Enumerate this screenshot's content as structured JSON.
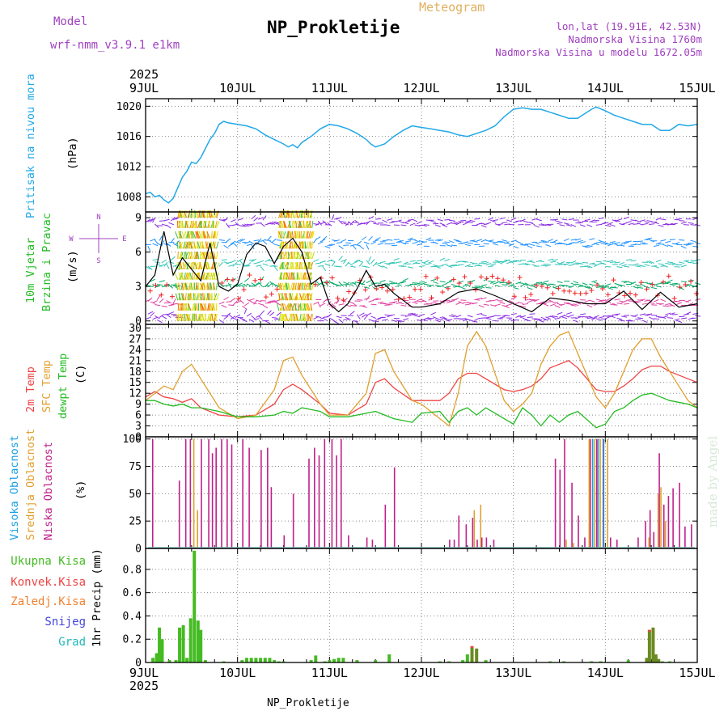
{
  "header": {
    "model_label": "Model",
    "model_name": "wrf-nmm_v3.9.1 e1km",
    "title": "NP_Prokletije",
    "meteogram": "Meteogram",
    "lonlat": "lon,lat (19.91E, 42.53N)",
    "altitude": "Nadmorska Visina 1760m",
    "model_altitude": "Nadmorska Visina u modelu 1672.05m"
  },
  "time_axis": {
    "year": "2025",
    "labels": [
      "9JUL",
      "10JUL",
      "11JUL",
      "12JUL",
      "13JUL",
      "14JUL",
      "15JUL"
    ],
    "start_day": 9,
    "end_day": 15
  },
  "footer": {
    "station": "NP_Prokletije",
    "watermark": "made by Angel"
  },
  "colors": {
    "pressure": "#22a8e8",
    "t2m": "#ee4444",
    "sfc": "#e0a030",
    "dewp": "#22bb22",
    "cloud_high": "#1aa0e0",
    "cloud_mid": "#e0a030",
    "cloud_low": "#c0208a",
    "precip_total": "#44bb22",
    "precip_conv": "#ee4444",
    "precip_zaledj": "#f08030",
    "precip_snow": "#4444dd",
    "precip_grad": "#22b8b8",
    "axis": "#000000"
  },
  "chart_data": [
    {
      "type": "line",
      "panel": "pressure",
      "ylabel_left": "Pritisak na nivou mora",
      "ylabel_unit": "(hPa)",
      "ylim": [
        1006,
        1021
      ],
      "yticks": [
        1008,
        1012,
        1016,
        1020
      ],
      "x": [
        9.0,
        9.05,
        9.1,
        9.15,
        9.2,
        9.25,
        9.3,
        9.35,
        9.4,
        9.45,
        9.5,
        9.55,
        9.6,
        9.65,
        9.7,
        9.75,
        9.8,
        9.85,
        9.9,
        10.0,
        10.1,
        10.2,
        10.3,
        10.4,
        10.5,
        10.55,
        10.6,
        10.65,
        10.7,
        10.8,
        10.9,
        11.0,
        11.1,
        11.2,
        11.3,
        11.4,
        11.45,
        11.5,
        11.6,
        11.7,
        11.8,
        11.9,
        12.0,
        12.1,
        12.2,
        12.3,
        12.4,
        12.5,
        12.6,
        12.7,
        12.8,
        12.9,
        13.0,
        13.1,
        13.2,
        13.3,
        13.4,
        13.5,
        13.6,
        13.7,
        13.8,
        13.85,
        13.9,
        14.0,
        14.1,
        14.2,
        14.3,
        14.4,
        14.5,
        14.6,
        14.7,
        14.8,
        14.9,
        15.0
      ],
      "series": [
        {
          "name": "",
          "values": [
            1008.4,
            1008.6,
            1008.0,
            1008.2,
            1007.6,
            1007.2,
            1007.8,
            1009.2,
            1010.6,
            1011.4,
            1012.6,
            1012.4,
            1013.2,
            1014.4,
            1015.6,
            1016.4,
            1017.6,
            1018.0,
            1017.8,
            1017.6,
            1017.4,
            1017.0,
            1016.2,
            1015.6,
            1015.0,
            1014.6,
            1014.9,
            1014.5,
            1015.2,
            1016.0,
            1017.0,
            1017.6,
            1017.4,
            1017.0,
            1016.4,
            1015.6,
            1015.0,
            1014.6,
            1015.0,
            1016.0,
            1016.8,
            1017.4,
            1017.2,
            1017.0,
            1016.8,
            1016.6,
            1016.2,
            1016.0,
            1016.4,
            1016.8,
            1017.4,
            1018.6,
            1019.6,
            1019.8,
            1019.6,
            1019.6,
            1019.2,
            1018.8,
            1018.4,
            1018.4,
            1019.2,
            1019.6,
            1019.9,
            1019.4,
            1018.8,
            1018.4,
            1018.0,
            1017.6,
            1017.6,
            1016.8,
            1016.8,
            1017.6,
            1017.4,
            1017.6
          ]
        }
      ]
    },
    {
      "type": "line",
      "panel": "wind",
      "ylabel_left": [
        "10m Vjetar",
        "Brzina i Pravac"
      ],
      "ylabel_unit": "(m/s)",
      "compass": [
        "N",
        "W",
        "E",
        "S"
      ],
      "ylim": [
        -0.3,
        9.5
      ],
      "yticks": [
        0,
        3,
        6,
        9
      ],
      "x": [
        9.0,
        9.1,
        9.2,
        9.3,
        9.4,
        9.5,
        9.6,
        9.7,
        9.8,
        9.9,
        10.0,
        10.1,
        10.2,
        10.3,
        10.4,
        10.5,
        10.6,
        10.7,
        10.8,
        10.9,
        11.0,
        11.1,
        11.2,
        11.3,
        11.4,
        11.5,
        11.6,
        11.7,
        11.8,
        11.9,
        12.0,
        12.2,
        12.4,
        12.6,
        12.8,
        13.0,
        13.2,
        13.4,
        13.6,
        13.8,
        14.0,
        14.2,
        14.4,
        14.6,
        14.8,
        15.0
      ],
      "series": [
        {
          "name": "",
          "values": [
            3.0,
            4.0,
            7.8,
            4.0,
            5.5,
            4.5,
            3.5,
            6.8,
            3.0,
            2.6,
            3.2,
            5.8,
            6.8,
            6.5,
            5.0,
            6.5,
            7.2,
            6.0,
            3.2,
            3.8,
            1.5,
            0.8,
            1.5,
            2.8,
            4.4,
            3.0,
            3.2,
            2.4,
            1.8,
            1.2,
            1.2,
            1.5,
            2.5,
            2.8,
            2.2,
            1.5,
            0.8,
            2.0,
            1.8,
            1.5,
            1.5,
            2.6,
            1.0,
            2.5,
            1.2,
            1.5
          ]
        }
      ]
    },
    {
      "type": "line",
      "panel": "temperature",
      "ylabel_left": [
        "2m Temp",
        "SFC Temp",
        "dewpt Temp"
      ],
      "ylabel_unit": "(C)",
      "ylim": [
        0,
        31
      ],
      "yticks": [
        0,
        3,
        6,
        9,
        12,
        15,
        18,
        21,
        24,
        27,
        30
      ],
      "x": [
        9.0,
        9.1,
        9.2,
        9.3,
        9.4,
        9.5,
        9.6,
        9.8,
        10.0,
        10.2,
        10.4,
        10.5,
        10.6,
        10.7,
        10.9,
        11.0,
        11.2,
        11.4,
        11.5,
        11.6,
        11.7,
        11.9,
        12.0,
        12.2,
        12.3,
        12.4,
        12.5,
        12.6,
        12.7,
        12.9,
        13.0,
        13.1,
        13.2,
        13.3,
        13.4,
        13.5,
        13.6,
        13.7,
        13.9,
        14.0,
        14.1,
        14.2,
        14.3,
        14.4,
        14.5,
        14.6,
        14.7,
        14.9,
        15.0
      ],
      "series": [
        {
          "name": "2m Temp",
          "values": [
            11,
            12.5,
            11,
            10.5,
            9.5,
            10.5,
            8,
            6,
            5.5,
            6,
            9,
            13,
            14.5,
            13,
            9,
            6.5,
            6,
            9,
            15,
            16,
            13.5,
            10,
            10,
            10,
            12,
            16,
            17.5,
            17.5,
            16,
            13,
            12.5,
            13,
            14,
            16,
            19,
            20,
            21,
            19,
            13,
            12.5,
            12.5,
            14,
            16,
            18.5,
            19.5,
            19.5,
            18,
            16,
            15
          ]
        },
        {
          "name": "SFC Temp",
          "values": [
            10,
            12,
            14,
            13,
            18,
            20,
            16,
            8,
            5,
            6,
            13,
            21,
            22,
            17,
            9,
            6,
            6,
            12,
            23,
            24,
            18,
            10,
            9,
            5,
            3,
            12,
            25,
            29,
            25,
            10,
            7,
            9,
            12,
            20,
            25,
            28,
            29,
            23,
            11,
            8,
            12,
            18,
            24,
            27,
            27,
            22,
            18,
            10,
            8
          ]
        },
        {
          "name": "dewpt Temp",
          "values": [
            10,
            10,
            9,
            8.5,
            9,
            8,
            8,
            7,
            5.5,
            5.5,
            6,
            7,
            6.5,
            8,
            7,
            5.5,
            5.5,
            6.5,
            7,
            6,
            5,
            4,
            6.5,
            7,
            4,
            7,
            8,
            6,
            8,
            5,
            3.5,
            8,
            6,
            3,
            6,
            4,
            6,
            7,
            2.5,
            3.5,
            7,
            8,
            10,
            11.5,
            12,
            11,
            10,
            9,
            8
          ]
        }
      ]
    },
    {
      "type": "bar",
      "panel": "clouds",
      "ylabel_left": [
        "Visoka Oblacnost",
        "Srednja Oblacnost",
        "Niska Oblacnost"
      ],
      "ylabel_unit": "(%)",
      "ylim": [
        0,
        102
      ],
      "yticks": [
        0,
        25,
        50,
        75,
        100
      ],
      "series": [
        {
          "name": "Niska Oblacnost",
          "x": [
            9.07,
            9.36,
            9.43,
            9.48,
            9.6,
            9.68,
            9.72,
            9.76,
            9.82,
            9.88,
            9.93,
            10.05,
            10.12,
            10.25,
            10.32,
            10.36,
            10.5,
            10.6,
            10.77,
            10.83,
            10.88,
            10.94,
            11.02,
            11.07,
            11.12,
            11.2,
            11.4,
            11.46,
            11.6,
            11.7,
            12.3,
            12.35,
            12.4,
            12.48,
            12.55,
            12.6,
            12.65,
            12.7,
            12.78,
            13.45,
            13.5,
            13.55,
            13.63,
            13.7,
            13.77,
            13.83,
            13.9,
            13.97,
            14.05,
            14.12,
            14.35,
            14.43,
            14.48,
            14.52,
            14.58,
            14.63,
            14.68,
            14.73,
            14.8,
            14.86,
            14.93
          ],
          "values": [
            100,
            62,
            100,
            100,
            100,
            100,
            87,
            92,
            100,
            100,
            95,
            100,
            92,
            90,
            92,
            56,
            12,
            50,
            82,
            92,
            85,
            100,
            100,
            85,
            100,
            12,
            10,
            8,
            40,
            74,
            8,
            8,
            30,
            22,
            28,
            8,
            10,
            10,
            8,
            82,
            72,
            100,
            60,
            30,
            10,
            100,
            100,
            100,
            10,
            8,
            10,
            25,
            35,
            15,
            87,
            40,
            48,
            55,
            60,
            20,
            22
          ]
        },
        {
          "name": "Srednja Oblacnost",
          "x": [
            9.5,
            9.54,
            12.55,
            12.62,
            13.55,
            13.63,
            13.8,
            13.86,
            13.92,
            14.0,
            14.45,
            14.55,
            14.58,
            14.63
          ],
          "values": [
            100,
            35,
            35,
            40,
            8,
            5,
            100,
            100,
            100,
            100,
            10,
            50,
            56,
            25
          ]
        },
        {
          "name": "Visoka Oblacnost",
          "x": [
            13.82,
            13.88,
            13.94
          ],
          "values": [
            100,
            100,
            100
          ]
        }
      ]
    },
    {
      "type": "bar",
      "panel": "precip",
      "ylabel_unit": "1hr Precip (mm)",
      "legend": [
        "Ukupna Kisa",
        "Konvek.Kisa",
        "Zaledj.Kisa",
        "Snijeg",
        "Grad"
      ],
      "ylim": [
        0,
        0.98
      ],
      "yticks": [
        0,
        0.2,
        0.4,
        0.6,
        0.8
      ],
      "series": [
        {
          "name": "Ukupna Kisa",
          "x": [
            9.08,
            9.12,
            9.15,
            9.18,
            9.26,
            9.33,
            9.37,
            9.41,
            9.45,
            9.49,
            9.53,
            9.57,
            9.6,
            9.65,
            9.85,
            10.05,
            10.1,
            10.15,
            10.2,
            10.25,
            10.3,
            10.35,
            10.4,
            10.45,
            10.5,
            10.8,
            10.85,
            10.95,
            11.0,
            11.05,
            11.1,
            11.15,
            11.3,
            11.5,
            11.65,
            12.2,
            12.3,
            12.45,
            12.5,
            12.55,
            12.6,
            12.7,
            13.4,
            13.55,
            13.85,
            13.95,
            14.25,
            14.45,
            14.48,
            14.52,
            14.55,
            14.58,
            14.62,
            14.7
          ],
          "values": [
            0.04,
            0.08,
            0.3,
            0.2,
            0.02,
            0.02,
            0.3,
            0.32,
            0.04,
            0.38,
            0.96,
            0.36,
            0.28,
            0.02,
            0.01,
            0.02,
            0.04,
            0.04,
            0.04,
            0.04,
            0.04,
            0.04,
            0.02,
            0.01,
            0.01,
            0.02,
            0.06,
            0.01,
            0.02,
            0.03,
            0.04,
            0.04,
            0.02,
            0.02,
            0.07,
            0.01,
            0.01,
            0.02,
            0.07,
            0.14,
            0.12,
            0.02,
            0.01,
            0.01,
            0.01,
            0.01,
            0.02,
            0.04,
            0.28,
            0.3,
            0.07,
            0.03,
            0.01,
            0.01
          ]
        }
      ]
    }
  ]
}
